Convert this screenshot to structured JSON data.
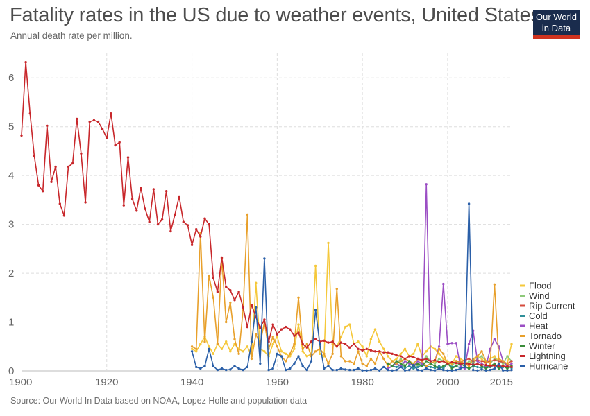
{
  "header": {
    "title": "Fatality rates in the US due to weather events, United States",
    "subtitle": "Annual death rate per million."
  },
  "logo": {
    "line1": "Our World",
    "line2": "in Data"
  },
  "footer": {
    "source": "Source: Our World In Data based on NOAA, Lopez Holle and population data"
  },
  "chart_data": {
    "type": "line",
    "title": "Fatality rates in the US due to weather events, United States",
    "subtitle": "Annual death rate per million.",
    "xlim": [
      1900,
      2015
    ],
    "ylim": [
      0,
      6.5
    ],
    "x_ticks": [
      "1900",
      "1920",
      "1940",
      "1960",
      "1980",
      "2000",
      "2015"
    ],
    "y_ticks": [
      "0",
      "1",
      "2",
      "3",
      "4",
      "5",
      "6"
    ],
    "grid": true,
    "legend": "right",
    "series": [
      {
        "name": "Flood",
        "color": "#f5c83a",
        "x": [
          1940,
          1941,
          1942,
          1943,
          1944,
          1945,
          1946,
          1947,
          1948,
          1949,
          1950,
          1951,
          1952,
          1953,
          1954,
          1955,
          1956,
          1957,
          1958,
          1959,
          1960,
          1961,
          1962,
          1963,
          1964,
          1965,
          1966,
          1967,
          1968,
          1969,
          1970,
          1971,
          1972,
          1973,
          1974,
          1975,
          1976,
          1977,
          1978,
          1979,
          1980,
          1981,
          1982,
          1983,
          1984,
          1985,
          1986,
          1987,
          1988,
          1989,
          1990,
          1991,
          1992,
          1993,
          1994,
          1995,
          1996,
          1997,
          1998,
          1999,
          2000,
          2001,
          2002,
          2003,
          2004,
          2005,
          2006,
          2007,
          2008,
          2009,
          2010,
          2011,
          2012,
          2013,
          2014,
          2015
        ],
        "values": [
          0.45,
          0.4,
          0.55,
          0.7,
          0.5,
          0.35,
          0.55,
          0.45,
          0.6,
          0.4,
          0.55,
          0.45,
          0.4,
          0.5,
          0.3,
          1.8,
          0.45,
          0.4,
          0.3,
          0.55,
          0.7,
          0.4,
          0.35,
          0.3,
          0.45,
          0.95,
          0.4,
          0.3,
          0.35,
          2.15,
          0.35,
          0.3,
          2.62,
          0.55,
          0.5,
          0.7,
          0.9,
          0.95,
          0.55,
          0.6,
          0.5,
          0.3,
          0.65,
          0.85,
          0.6,
          0.45,
          0.3,
          0.2,
          0.25,
          0.35,
          0.45,
          0.3,
          0.35,
          0.55,
          0.3,
          0.4,
          0.5,
          0.45,
          0.35,
          0.25,
          0.2,
          0.15,
          0.3,
          0.25,
          0.2,
          0.15,
          0.2,
          0.3,
          0.25,
          0.15,
          0.25,
          0.3,
          0.2,
          0.15,
          0.15,
          0.55
        ]
      },
      {
        "name": "Wind",
        "color": "#8ec97a",
        "x": [
          1986,
          1987,
          1988,
          1989,
          1990,
          1991,
          1992,
          1993,
          1994,
          1995,
          1996,
          1997,
          1998,
          1999,
          2000,
          2001,
          2002,
          2003,
          2004,
          2005,
          2006,
          2007,
          2008,
          2009,
          2010,
          2011,
          2012,
          2013,
          2014,
          2015
        ],
        "values": [
          0.1,
          0.2,
          0.15,
          0.25,
          0.1,
          0.2,
          0.15,
          0.1,
          0.2,
          0.3,
          0.2,
          0.15,
          0.25,
          0.2,
          0.15,
          0.1,
          0.2,
          0.15,
          0.1,
          0.2,
          0.15,
          0.25,
          0.3,
          0.2,
          0.15,
          0.25,
          0.2,
          0.15,
          0.3,
          0.2
        ]
      },
      {
        "name": "Rip Current",
        "color": "#d64b3c",
        "x": [
          2002,
          2003,
          2004,
          2005,
          2006,
          2007,
          2008,
          2009,
          2010,
          2011,
          2012,
          2013,
          2014,
          2015
        ],
        "values": [
          0.2,
          0.18,
          0.22,
          0.25,
          0.2,
          0.22,
          0.2,
          0.18,
          0.2,
          0.22,
          0.2,
          0.18,
          0.15,
          0.2
        ]
      },
      {
        "name": "Cold",
        "color": "#2f8f99",
        "x": [
          1986,
          1987,
          1988,
          1989,
          1990,
          1991,
          1992,
          1993,
          1994,
          1995,
          1996,
          1997,
          1998,
          1999,
          2000,
          2001,
          2002,
          2003,
          2004,
          2005,
          2006,
          2007,
          2008,
          2009,
          2010,
          2011,
          2012,
          2013,
          2014,
          2015
        ],
        "values": [
          0.05,
          0.1,
          0.08,
          0.12,
          0.06,
          0.1,
          0.05,
          0.08,
          0.12,
          0.1,
          0.08,
          0.06,
          0.1,
          0.05,
          0.15,
          0.08,
          0.1,
          0.06,
          0.08,
          0.05,
          0.1,
          0.08,
          0.06,
          0.1,
          0.08,
          0.12,
          0.05,
          0.08,
          0.1,
          0.06
        ]
      },
      {
        "name": "Heat",
        "color": "#9b4ec4",
        "x": [
          1986,
          1987,
          1988,
          1989,
          1990,
          1991,
          1992,
          1993,
          1994,
          1995,
          1996,
          1997,
          1998,
          1999,
          2000,
          2001,
          2002,
          2003,
          2004,
          2005,
          2006,
          2007,
          2008,
          2009,
          2010,
          2011,
          2012,
          2013,
          2014,
          2015
        ],
        "values": [
          0.05,
          0.1,
          0.15,
          0.1,
          0.2,
          0.15,
          0.1,
          0.2,
          0.15,
          3.82,
          0.15,
          0.2,
          0.5,
          1.78,
          0.55,
          0.57,
          0.57,
          0.1,
          0.05,
          0.55,
          0.82,
          0.2,
          0.15,
          0.1,
          0.45,
          0.65,
          0.5,
          0.2,
          0.1,
          0.15
        ]
      },
      {
        "name": "Tornado",
        "color": "#e8a02b",
        "x": [
          1940,
          1941,
          1942,
          1943,
          1944,
          1945,
          1946,
          1947,
          1948,
          1949,
          1950,
          1951,
          1952,
          1953,
          1954,
          1955,
          1956,
          1957,
          1958,
          1959,
          1960,
          1961,
          1962,
          1963,
          1964,
          1965,
          1966,
          1967,
          1968,
          1969,
          1970,
          1971,
          1972,
          1973,
          1974,
          1975,
          1976,
          1977,
          1978,
          1979,
          1980,
          1981,
          1982,
          1983,
          1984,
          1985,
          1986,
          1987,
          1988,
          1989,
          1990,
          1991,
          1992,
          1993,
          1994,
          1995,
          1996,
          1997,
          1998,
          1999,
          2000,
          2001,
          2002,
          2003,
          2004,
          2005,
          2006,
          2007,
          2008,
          2009,
          2010,
          2011,
          2012,
          2013,
          2014,
          2015
        ],
        "values": [
          0.5,
          0.45,
          2.82,
          0.6,
          1.95,
          1.5,
          0.55,
          2.3,
          1.0,
          1.4,
          0.65,
          0.35,
          1.25,
          3.2,
          0.25,
          0.75,
          0.55,
          1.0,
          0.45,
          0.7,
          0.5,
          0.3,
          0.2,
          0.35,
          0.55,
          1.5,
          0.45,
          0.55,
          0.3,
          0.4,
          0.45,
          0.35,
          0.15,
          0.35,
          1.68,
          0.3,
          0.2,
          0.2,
          0.15,
          0.4,
          0.15,
          0.1,
          0.25,
          0.15,
          0.4,
          0.25,
          0.1,
          0.2,
          0.15,
          0.2,
          0.25,
          0.2,
          0.15,
          0.25,
          0.2,
          0.1,
          0.15,
          0.2,
          0.45,
          0.35,
          0.15,
          0.15,
          0.2,
          0.2,
          0.15,
          0.1,
          0.25,
          0.3,
          0.4,
          0.2,
          0.15,
          1.77,
          0.25,
          0.2,
          0.15,
          0.1
        ]
      },
      {
        "name": "Winter",
        "color": "#3a8c3a",
        "x": [
          1986,
          1987,
          1988,
          1989,
          1990,
          1991,
          1992,
          1993,
          1994,
          1995,
          1996,
          1997,
          1998,
          1999,
          2000,
          2001,
          2002,
          2003,
          2004,
          2005,
          2006,
          2007,
          2008,
          2009,
          2010,
          2011,
          2012,
          2013,
          2014,
          2015
        ],
        "values": [
          0.15,
          0.1,
          0.2,
          0.15,
          0.1,
          0.2,
          0.1,
          0.15,
          0.1,
          0.2,
          0.15,
          0.1,
          0.05,
          0.1,
          0.15,
          0.05,
          0.1,
          0.15,
          0.1,
          0.05,
          0.1,
          0.15,
          0.1,
          0.05,
          0.1,
          0.15,
          0.05,
          0.1,
          0.05,
          0.1
        ]
      },
      {
        "name": "Lightning",
        "color": "#c8272b",
        "x": [
          1900,
          1901,
          1902,
          1903,
          1904,
          1905,
          1906,
          1907,
          1908,
          1909,
          1910,
          1911,
          1912,
          1913,
          1914,
          1915,
          1916,
          1917,
          1918,
          1919,
          1920,
          1921,
          1922,
          1923,
          1924,
          1925,
          1926,
          1927,
          1928,
          1929,
          1930,
          1931,
          1932,
          1933,
          1934,
          1935,
          1936,
          1937,
          1938,
          1939,
          1940,
          1941,
          1942,
          1943,
          1944,
          1945,
          1946,
          1947,
          1948,
          1949,
          1950,
          1951,
          1952,
          1953,
          1954,
          1955,
          1956,
          1957,
          1958,
          1959,
          1960,
          1961,
          1962,
          1963,
          1964,
          1965,
          1966,
          1967,
          1968,
          1969,
          1970,
          1971,
          1972,
          1973,
          1974,
          1975,
          1976,
          1977,
          1978,
          1979,
          1980,
          1981,
          1982,
          1983,
          1984,
          1985,
          1986,
          1987,
          1988,
          1989,
          1990,
          1991,
          1992,
          1993,
          1994,
          1995,
          1996,
          1997,
          1998,
          1999,
          2000,
          2001,
          2002,
          2003,
          2004,
          2005,
          2006,
          2007,
          2008,
          2009,
          2010,
          2011,
          2012,
          2013,
          2014,
          2015
        ],
        "values": [
          4.82,
          6.32,
          5.27,
          4.4,
          3.8,
          3.68,
          5.02,
          3.87,
          4.18,
          3.42,
          3.18,
          4.18,
          4.25,
          5.16,
          4.45,
          3.45,
          5.1,
          5.13,
          5.1,
          4.95,
          4.77,
          5.27,
          4.62,
          4.68,
          3.39,
          4.37,
          3.52,
          3.28,
          3.75,
          3.32,
          3.05,
          3.72,
          3.0,
          3.1,
          3.68,
          2.86,
          3.2,
          3.57,
          3.05,
          2.98,
          2.58,
          2.9,
          2.75,
          3.12,
          3.0,
          1.9,
          1.62,
          2.32,
          1.72,
          1.65,
          1.45,
          1.62,
          1.3,
          0.9,
          1.35,
          1.1,
          0.88,
          1.05,
          0.6,
          0.95,
          0.75,
          0.85,
          0.9,
          0.85,
          0.72,
          0.78,
          0.55,
          0.48,
          0.6,
          0.65,
          0.6,
          0.62,
          0.58,
          0.6,
          0.5,
          0.58,
          0.55,
          0.48,
          0.55,
          0.45,
          0.42,
          0.45,
          0.42,
          0.4,
          0.4,
          0.38,
          0.38,
          0.35,
          0.32,
          0.3,
          0.25,
          0.3,
          0.28,
          0.25,
          0.22,
          0.25,
          0.2,
          0.22,
          0.18,
          0.2,
          0.15,
          0.18,
          0.16,
          0.15,
          0.15,
          0.14,
          0.13,
          0.14,
          0.12,
          0.12,
          0.1,
          0.11,
          0.1,
          0.1,
          0.09,
          0.08
        ]
      },
      {
        "name": "Hurricane",
        "color": "#2a5fa8",
        "x": [
          1940,
          1941,
          1942,
          1943,
          1944,
          1945,
          1946,
          1947,
          1948,
          1949,
          1950,
          1951,
          1952,
          1953,
          1954,
          1955,
          1956,
          1957,
          1958,
          1959,
          1960,
          1961,
          1962,
          1963,
          1964,
          1965,
          1966,
          1967,
          1968,
          1969,
          1970,
          1971,
          1972,
          1973,
          1974,
          1975,
          1976,
          1977,
          1978,
          1979,
          1980,
          1981,
          1982,
          1983,
          1984,
          1985,
          1986,
          1987,
          1988,
          1989,
          1990,
          1991,
          1992,
          1993,
          1994,
          1995,
          1996,
          1997,
          1998,
          1999,
          2000,
          2001,
          2002,
          2003,
          2004,
          2005,
          2006,
          2007,
          2008,
          2009,
          2010,
          2011,
          2012,
          2013,
          2014,
          2015
        ],
        "values": [
          0.4,
          0.08,
          0.05,
          0.1,
          0.45,
          0.1,
          0.02,
          0.05,
          0.02,
          0.03,
          0.1,
          0.05,
          0.02,
          0.08,
          0.6,
          1.3,
          0.15,
          2.3,
          0.02,
          0.05,
          0.35,
          0.3,
          0.02,
          0.05,
          0.15,
          0.3,
          0.1,
          0.02,
          0.2,
          1.25,
          0.55,
          0.05,
          0.1,
          0.02,
          0.02,
          0.05,
          0.03,
          0.02,
          0.02,
          0.05,
          0.01,
          0.01,
          0.02,
          0.05,
          0.01,
          0.08,
          0.02,
          0.01,
          0.02,
          0.08,
          0.01,
          0.02,
          0.12,
          0.02,
          0.01,
          0.05,
          0.02,
          0.01,
          0.05,
          0.02,
          0.01,
          0.01,
          0.02,
          0.05,
          0.08,
          3.42,
          0.02,
          0.01,
          0.03,
          0.01,
          0.02,
          0.05,
          0.15,
          0.01,
          0.01,
          0.02
        ]
      }
    ]
  }
}
